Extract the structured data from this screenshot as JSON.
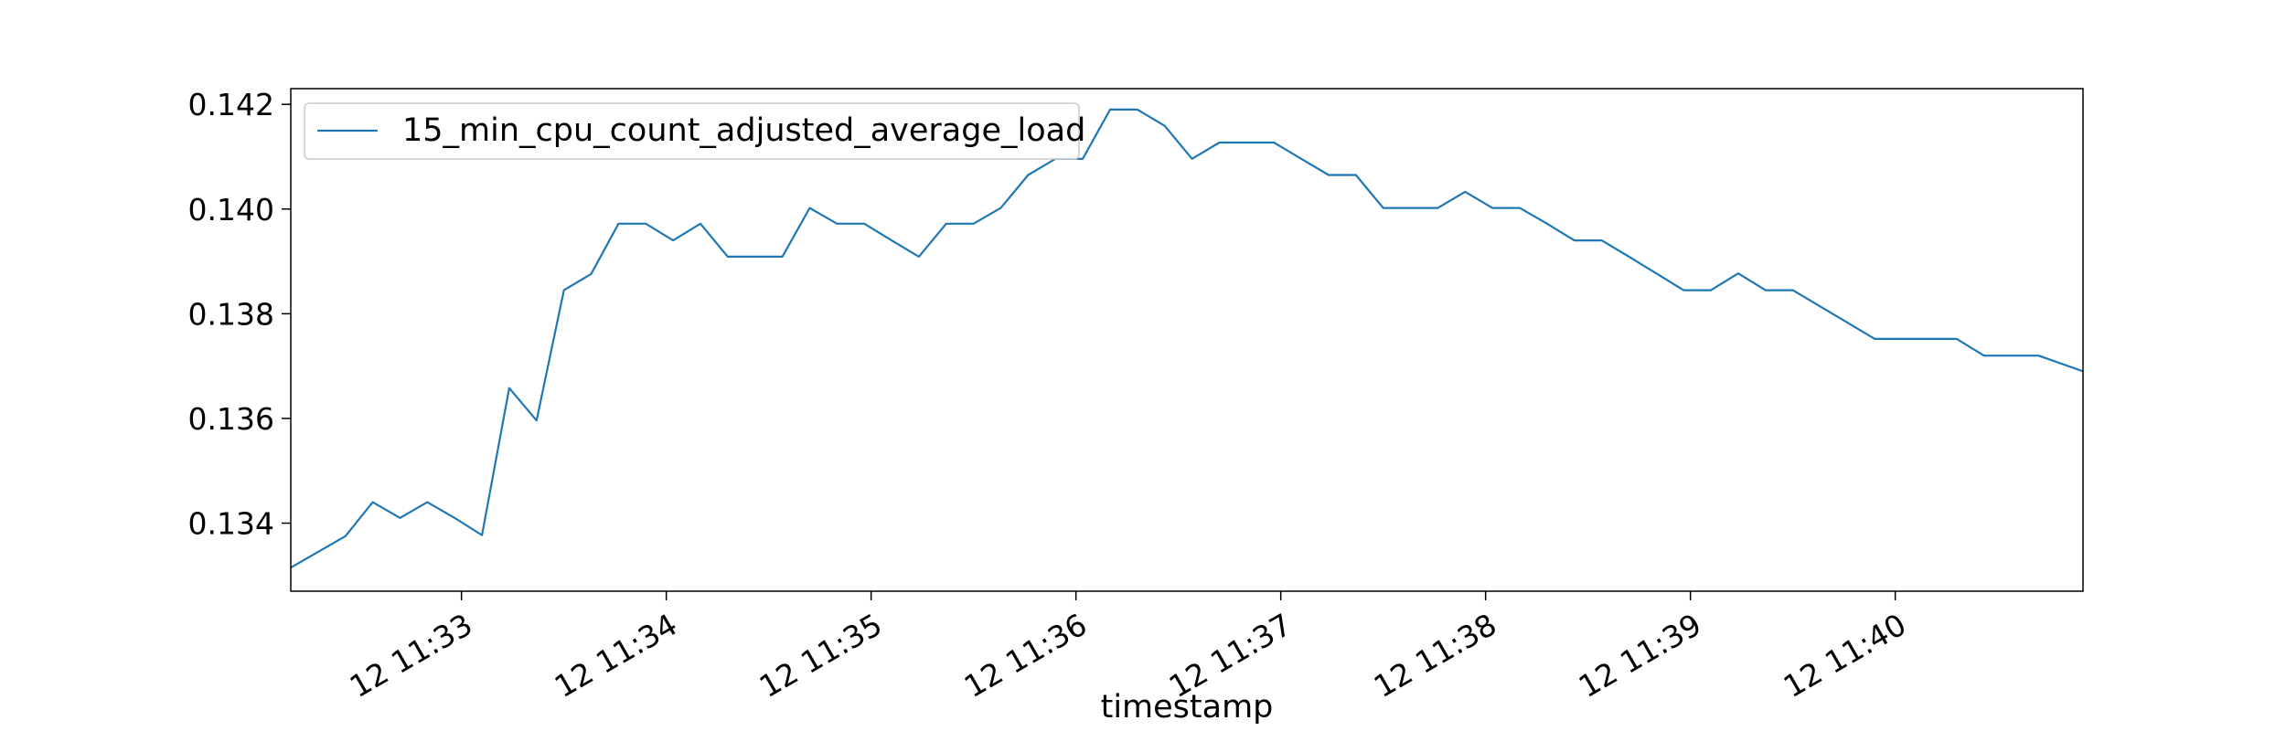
{
  "chart_data": {
    "type": "line",
    "title": "",
    "xlabel": "timestamp",
    "ylabel": "",
    "grid": false,
    "legend_position": "top-left",
    "line_color": "#1f77b4",
    "x_format": "time",
    "x_range": [
      "11:32:10",
      "11:40:55"
    ],
    "ylim": [
      0.1327,
      0.1423
    ],
    "x_ticks": [
      {
        "time": "11:33:00",
        "label": "12 11:33"
      },
      {
        "time": "11:34:00",
        "label": "12 11:34"
      },
      {
        "time": "11:35:00",
        "label": "12 11:35"
      },
      {
        "time": "11:36:00",
        "label": "12 11:36"
      },
      {
        "time": "11:37:00",
        "label": "12 11:37"
      },
      {
        "time": "11:38:00",
        "label": "12 11:38"
      },
      {
        "time": "11:39:00",
        "label": "12 11:39"
      },
      {
        "time": "11:40:00",
        "label": "12 11:40"
      }
    ],
    "y_ticks": [
      {
        "value": 0.134,
        "label": "0.134"
      },
      {
        "value": 0.136,
        "label": "0.136"
      },
      {
        "value": 0.138,
        "label": "0.138"
      },
      {
        "value": 0.14,
        "label": "0.140"
      },
      {
        "value": 0.142,
        "label": "0.142"
      }
    ],
    "series": [
      {
        "name": "15_min_cpu_count_adjusted_average_load",
        "x": [
          "11:32:10",
          "11:32:26",
          "11:32:34",
          "11:32:42",
          "11:32:50",
          "11:32:58",
          "11:33:06",
          "11:33:14",
          "11:33:22",
          "11:33:30",
          "11:33:38",
          "11:33:46",
          "11:33:54",
          "11:34:02",
          "11:34:10",
          "11:34:18",
          "11:34:26",
          "11:34:34",
          "11:34:42",
          "11:34:50",
          "11:34:58",
          "11:35:06",
          "11:35:14",
          "11:35:22",
          "11:35:30",
          "11:35:38",
          "11:35:46",
          "11:35:54",
          "11:36:02",
          "11:36:10",
          "11:36:18",
          "11:36:26",
          "11:36:34",
          "11:36:42",
          "11:36:50",
          "11:36:58",
          "11:37:06",
          "11:37:14",
          "11:37:22",
          "11:37:30",
          "11:37:38",
          "11:37:46",
          "11:37:54",
          "11:38:02",
          "11:38:10",
          "11:38:18",
          "11:38:26",
          "11:38:34",
          "11:38:42",
          "11:38:50",
          "11:38:58",
          "11:39:06",
          "11:39:14",
          "11:39:22",
          "11:39:30",
          "11:39:38",
          "11:39:46",
          "11:39:54",
          "11:40:02",
          "11:40:10",
          "11:40:18",
          "11:40:26",
          "11:40:34",
          "11:40:42",
          "11:40:55"
        ],
        "values": [
          0.13315,
          0.13375,
          0.1344,
          0.1341,
          0.1344,
          0.1341,
          0.13377,
          0.13658,
          0.13596,
          0.13845,
          0.13876,
          0.13972,
          0.13972,
          0.1394,
          0.13972,
          0.13909,
          0.13909,
          0.13909,
          0.14002,
          0.13972,
          0.13972,
          0.1394,
          0.13909,
          0.13972,
          0.13972,
          0.14002,
          0.14065,
          0.14096,
          0.14096,
          0.1419,
          0.1419,
          0.14159,
          0.14096,
          0.14127,
          0.14127,
          0.14127,
          0.14096,
          0.14065,
          0.14065,
          0.14002,
          0.14002,
          0.14002,
          0.14033,
          0.14002,
          0.14002,
          0.13972,
          0.1394,
          0.1394,
          0.13909,
          0.13877,
          0.13845,
          0.13845,
          0.13877,
          0.13845,
          0.13845,
          0.13814,
          0.13783,
          0.13752,
          0.13752,
          0.13752,
          0.13752,
          0.1372,
          0.1372,
          0.1372,
          0.1369
        ]
      }
    ]
  }
}
